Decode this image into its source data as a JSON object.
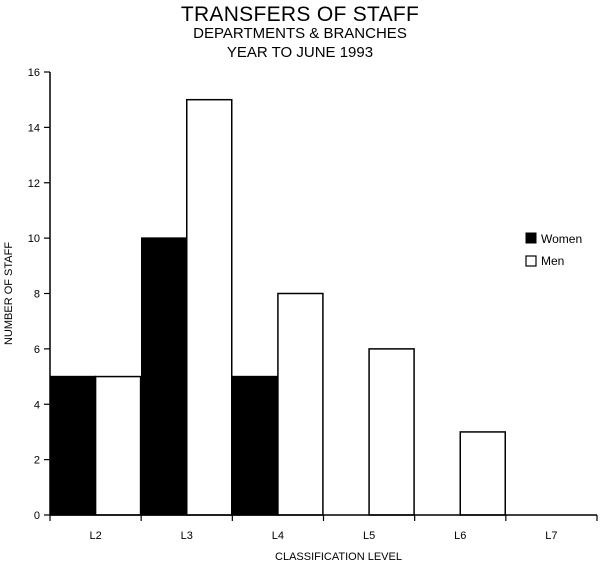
{
  "chart_data": {
    "type": "bar",
    "title": "TRANSFERS OF STAFF",
    "subtitle_lines": [
      "DEPARTMENTS & BRANCHES",
      "YEAR TO JUNE 1993"
    ],
    "xlabel": "CLASSIFICATION LEVEL",
    "ylabel": "NUMBER OF STAFF",
    "categories": [
      "L2",
      "L3",
      "L4",
      "L5",
      "L6",
      "L7"
    ],
    "ylim": [
      0,
      16
    ],
    "yticks": [
      "0",
      "2",
      "4",
      "6",
      "8",
      "10",
      "12",
      "14",
      "16"
    ],
    "grid": false,
    "legend_position": "right",
    "series": [
      {
        "name": "Women",
        "values": [
          5,
          10,
          5,
          0,
          0,
          0
        ],
        "color": "#000000"
      },
      {
        "name": "Men",
        "values": [
          5,
          15,
          8,
          6,
          3,
          0
        ],
        "color": "#ffffff"
      }
    ]
  }
}
